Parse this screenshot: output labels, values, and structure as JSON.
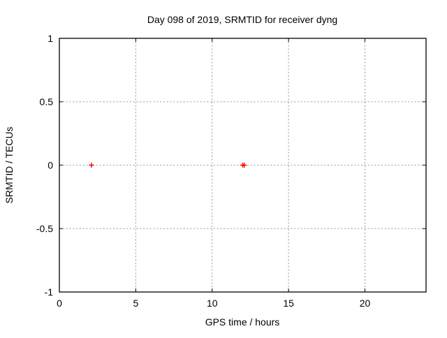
{
  "chart_data": {
    "type": "scatter",
    "title": "Day 098 of 2019, SRMTID for receiver dyng",
    "xlabel": "GPS time / hours",
    "ylabel": "SRMTID / TECUs",
    "xlim": [
      0,
      24
    ],
    "ylim": [
      -1,
      1
    ],
    "xticks": [
      0,
      5,
      10,
      15,
      20
    ],
    "yticks": [
      -1,
      -0.5,
      0,
      0.5,
      1
    ],
    "grid": true,
    "legend": "none",
    "series": [
      {
        "name": "SRMTID",
        "marker": "plus",
        "color": "#ff0000",
        "points": [
          [
            2.1,
            0.0
          ],
          [
            12.0,
            0.0
          ],
          [
            12.1,
            0.0
          ]
        ]
      }
    ]
  },
  "colors": {
    "background": "#ffffff",
    "axis": "#000000",
    "grid": "#9c9c9c",
    "marker": "#ff0000",
    "text": "#000000"
  }
}
